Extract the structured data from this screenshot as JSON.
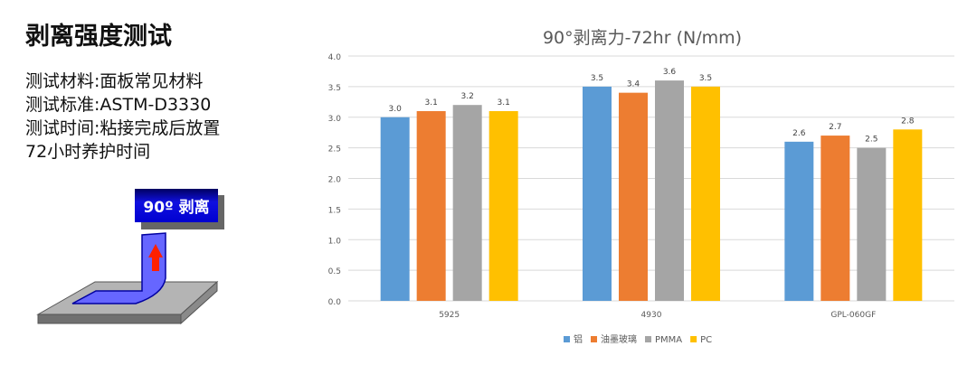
{
  "slide": {
    "title": "剥离强度测试",
    "lines": [
      "测试材料:面板常见材料",
      "测试标准:ASTM-D3330",
      "测试时间:粘接完成后放置",
      "72小时养护时间"
    ],
    "diagram_label": "90º 剥离"
  },
  "chart_data": {
    "type": "bar",
    "title": "90°剥离力-72hr (N/mm)",
    "categories": [
      "5925",
      "4930",
      "GPL-060GF"
    ],
    "series": [
      {
        "name": "铝",
        "color": "#5B9BD5",
        "values": [
          3.0,
          3.5,
          2.6
        ]
      },
      {
        "name": "油墨玻璃",
        "color": "#ED7D31",
        "values": [
          3.1,
          3.4,
          2.7
        ]
      },
      {
        "name": "PMMA",
        "color": "#A5A5A5",
        "values": [
          3.2,
          3.6,
          2.5
        ]
      },
      {
        "name": "PC",
        "color": "#FFC000",
        "values": [
          3.1,
          3.5,
          2.8
        ]
      }
    ],
    "ylim": [
      0,
      4
    ],
    "yticks": [
      "0.0",
      "0.5",
      "1.0",
      "1.5",
      "2.0",
      "2.5",
      "3.0",
      "3.5",
      "4.0"
    ],
    "grid": true,
    "legend": "bottom",
    "data_labels": true
  }
}
